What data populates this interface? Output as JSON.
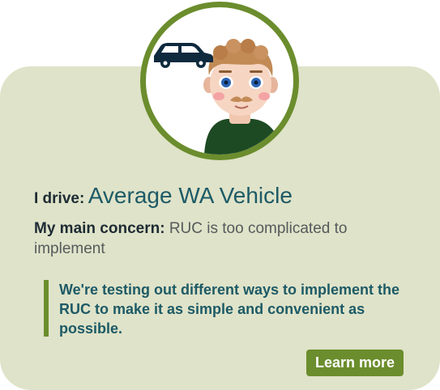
{
  "profile": {
    "drive_label": "I drive:",
    "drive_value": "Average WA Vehicle",
    "concern_label": "My main concern:",
    "concern_text": "RUC is too complicated to implement"
  },
  "message": {
    "text": "We're testing out different ways to implement the RUC to make it as simple and convenient as possible."
  },
  "actions": {
    "learn_more_label": "Learn more"
  },
  "icons": {
    "avatar": "driver-avatar-illustration",
    "vehicle": "car-icon"
  },
  "colors": {
    "card_background": "#dfe3c9",
    "accent_green": "#6b8d2d",
    "heading_teal": "#1d5a66",
    "dark_text": "#1d2b33",
    "body_text": "#555a5c"
  }
}
